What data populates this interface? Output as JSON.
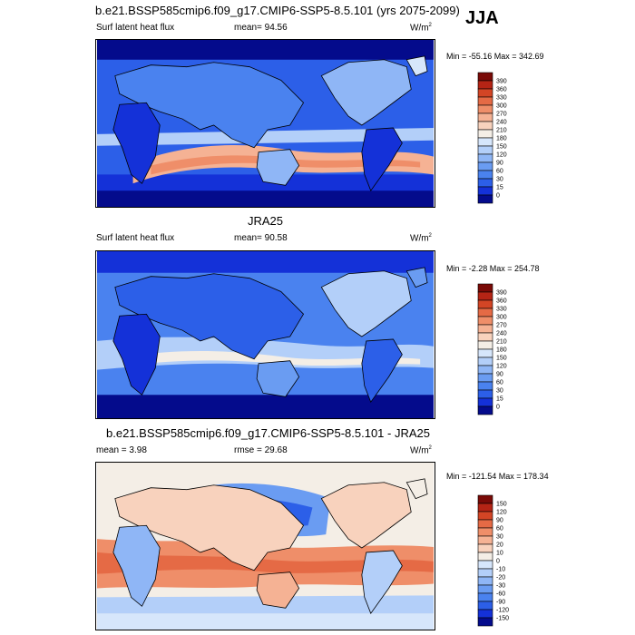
{
  "season": "JJA",
  "panels": [
    {
      "title": "b.e21.BSSP585cmip6.f09_g17.CMIP6-SSP5-8.5.101 (yrs 2075-2099)",
      "left_text": "Surf latent heat flux",
      "center_text": "mean=  94.56",
      "units": "W/m",
      "units_sup": "2",
      "minmax": "Min = -55.16 Max = 342.69",
      "colorbar": {
        "colors": [
          "#040b8c",
          "#1431d8",
          "#2c5fe8",
          "#4a82ef",
          "#6a9cf2",
          "#8fb6f6",
          "#b3cff9",
          "#d6e6fb",
          "#f4eee6",
          "#f8d2bd",
          "#f5b294",
          "#ef8e69",
          "#e56a45",
          "#d34525",
          "#b52415",
          "#7a0a07"
        ],
        "labels": [
          "0",
          "15",
          "30",
          "60",
          "90",
          "120",
          "150",
          "180",
          "210",
          "240",
          "270",
          "300",
          "330",
          "360",
          "390"
        ]
      }
    },
    {
      "title": "JRA25",
      "left_text": "Surf latent heat flux",
      "center_text": "mean=  90.58",
      "units": "W/m",
      "units_sup": "2",
      "minmax": "Min =  -2.28 Max = 254.78",
      "colorbar": {
        "colors": [
          "#040b8c",
          "#1431d8",
          "#2c5fe8",
          "#4a82ef",
          "#6a9cf2",
          "#8fb6f6",
          "#b3cff9",
          "#d6e6fb",
          "#f4eee6",
          "#f8d2bd",
          "#f5b294",
          "#ef8e69",
          "#e56a45",
          "#d34525",
          "#b52415",
          "#7a0a07"
        ],
        "labels": [
          "0",
          "15",
          "30",
          "60",
          "90",
          "120",
          "150",
          "180",
          "210",
          "240",
          "270",
          "300",
          "330",
          "360",
          "390"
        ]
      }
    },
    {
      "title": "b.e21.BSSP585cmip6.f09_g17.CMIP6-SSP5-8.5.101 - JRA25",
      "left_text": "mean =   3.98",
      "center_text": "rmse =  29.68",
      "units": "W/m",
      "units_sup": "2",
      "minmax": "Min = -121.54 Max = 178.34",
      "colorbar": {
        "colors": [
          "#040b8c",
          "#1431d8",
          "#2c5fe8",
          "#4a82ef",
          "#6a9cf2",
          "#8fb6f6",
          "#b3cff9",
          "#d6e6fb",
          "#f4eee6",
          "#f8d2bd",
          "#f5b294",
          "#ef8e69",
          "#e56a45",
          "#d34525",
          "#b52415",
          "#7a0a07"
        ],
        "labels": [
          "-150",
          "-120",
          "-90",
          "-60",
          "-30",
          "-20",
          "-10",
          "0",
          "10",
          "20",
          "30",
          "60",
          "90",
          "120",
          "150"
        ]
      }
    }
  ]
}
